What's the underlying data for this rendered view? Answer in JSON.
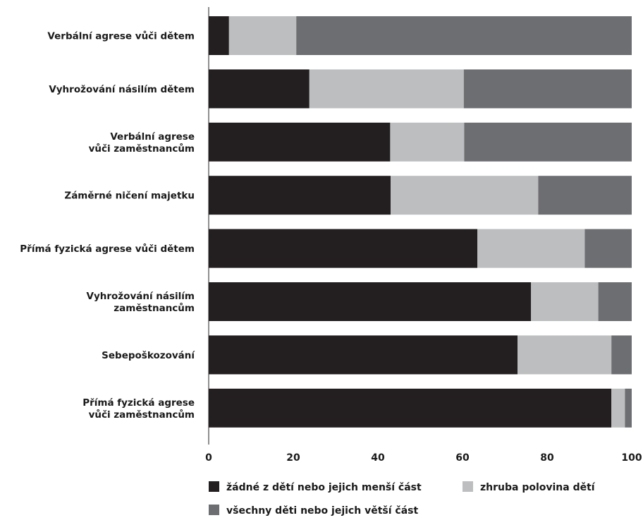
{
  "chart_data": {
    "type": "bar",
    "orientation": "horizontal",
    "stacked": true,
    "categories": [
      "Verbální agrese vůči dětem",
      "Vyhrožování násilím dětem",
      "Verbální agrese\nvůči zaměstnancům",
      "Záměrné ničení majetku",
      "Přímá fyzická agrese vůči dětem",
      "Vyhrožování násilím\nzaměstnancům",
      "Sebepoškozování",
      "Přímá fyzická agrese\nvůči zaměstnancům"
    ],
    "series": [
      {
        "name": "žádné z dětí nebo jejich menší část",
        "color": "#231f20",
        "values": [
          4.8,
          23.8,
          42.9,
          43.0,
          63.5,
          76.2,
          73.0,
          95.2
        ]
      },
      {
        "name": "zhruba polovina dětí",
        "color": "#bcbec0",
        "values": [
          15.9,
          36.5,
          17.5,
          34.9,
          25.4,
          15.9,
          22.2,
          3.2
        ]
      },
      {
        "name": "všechny děti nebo jejich větší část",
        "color": "#6d6e71",
        "values": [
          79.3,
          39.7,
          39.6,
          22.1,
          11.1,
          7.9,
          4.8,
          1.6
        ]
      }
    ],
    "x_ticks": [
      "0",
      "20",
      "40",
      "60",
      "80",
      "100"
    ],
    "xlim": [
      0,
      100
    ],
    "title": "",
    "xlabel": "",
    "ylabel": "",
    "grid": false,
    "legend_position": "bottom"
  }
}
